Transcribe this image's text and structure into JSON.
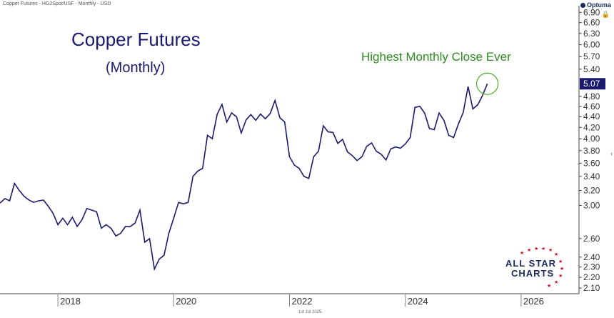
{
  "header": {
    "info": "Copper Futures - HG2Spot/USF - Monthly - USD",
    "logo": "Optuma"
  },
  "footer": {
    "date_label": "1st Jul 2025"
  },
  "annotations": {
    "title": "Copper Futures",
    "subtitle": "(Monthly)",
    "highlight": "Highest Monthly Close Ever"
  },
  "branding": {
    "line1": "ALL STAR",
    "line2": "CHARTS"
  },
  "colors": {
    "line": "#1a1a6e",
    "highlight": "#2e8b1f",
    "last_price_box": "#1a1a6e"
  },
  "chart_data": {
    "type": "line",
    "title": "Copper Futures",
    "subtitle": "(Monthly)",
    "yscale": "log",
    "ylim": [
      2.05,
      7.1
    ],
    "xlim": [
      "2017-01",
      "2026-12"
    ],
    "y_ticks": [
      "6.90",
      "6.60",
      "6.30",
      "6.00",
      "5.70",
      "5.40",
      "4.80",
      "4.60",
      "4.40",
      "4.20",
      "4.00",
      "3.80",
      "3.60",
      "3.40",
      "3.20",
      "3.00",
      "2.60",
      "2.40",
      "2.30",
      "2.20",
      "2.10"
    ],
    "y_tick_values": [
      6.9,
      6.6,
      6.3,
      6.0,
      5.7,
      5.4,
      4.8,
      4.6,
      4.4,
      4.2,
      4.0,
      3.8,
      3.6,
      3.4,
      3.2,
      3.0,
      2.6,
      2.4,
      2.3,
      2.2,
      2.1
    ],
    "x_ticks": [
      "2018",
      "2020",
      "2022",
      "2024",
      "2026"
    ],
    "last_price": "5.07",
    "series": [
      {
        "x": [
          "2017-01",
          "2017-02",
          "2017-03",
          "2017-04",
          "2017-05",
          "2017-06",
          "2017-07",
          "2017-08",
          "2017-09",
          "2017-10",
          "2017-11",
          "2017-12",
          "2018-01",
          "2018-02",
          "2018-03",
          "2018-04",
          "2018-05",
          "2018-06",
          "2018-07",
          "2018-08",
          "2018-09",
          "2018-10",
          "2018-11",
          "2018-12",
          "2019-01",
          "2019-02",
          "2019-03",
          "2019-04",
          "2019-05",
          "2019-06",
          "2019-07",
          "2019-08",
          "2019-09",
          "2019-10",
          "2019-11",
          "2019-12",
          "2020-01",
          "2020-02",
          "2020-03",
          "2020-04",
          "2020-05",
          "2020-06",
          "2020-07",
          "2020-08",
          "2020-09",
          "2020-10",
          "2020-11",
          "2020-12",
          "2021-01",
          "2021-02",
          "2021-03",
          "2021-04",
          "2021-05",
          "2021-06",
          "2021-07",
          "2021-08",
          "2021-09",
          "2021-10",
          "2021-11",
          "2021-12",
          "2022-01",
          "2022-02",
          "2022-03",
          "2022-04",
          "2022-05",
          "2022-06",
          "2022-07",
          "2022-08",
          "2022-09",
          "2022-10",
          "2022-11",
          "2022-12",
          "2023-01",
          "2023-02",
          "2023-03",
          "2023-04",
          "2023-05",
          "2023-06",
          "2023-07",
          "2023-08",
          "2023-09",
          "2023-10",
          "2023-11",
          "2023-12",
          "2024-01",
          "2024-02",
          "2024-03",
          "2024-04",
          "2024-05",
          "2024-06",
          "2024-07",
          "2024-08",
          "2024-09",
          "2024-10",
          "2024-11",
          "2024-12",
          "2025-01",
          "2025-02",
          "2025-03",
          "2025-04",
          "2025-05",
          "2025-06"
        ],
        "y": [
          3.03,
          3.09,
          3.06,
          3.3,
          3.2,
          3.12,
          3.07,
          3.04,
          3.06,
          3.07,
          2.99,
          2.9,
          2.76,
          2.84,
          2.76,
          2.85,
          2.74,
          2.82,
          2.96,
          2.94,
          2.92,
          2.72,
          2.76,
          2.72,
          2.63,
          2.66,
          2.74,
          2.74,
          2.78,
          2.94,
          2.56,
          2.6,
          2.28,
          2.38,
          2.42,
          2.66,
          2.84,
          3.04,
          3.02,
          3.04,
          3.4,
          3.48,
          3.52,
          4.06,
          4.0,
          4.44,
          4.64,
          4.3,
          4.47,
          4.4,
          4.1,
          4.34,
          4.44,
          4.33,
          4.45,
          4.36,
          4.46,
          4.72,
          4.38,
          4.3,
          3.7,
          3.57,
          3.52,
          3.4,
          3.37,
          3.7,
          3.79,
          4.23,
          4.12,
          4.11,
          3.92,
          3.99,
          3.78,
          3.72,
          3.64,
          3.7,
          3.87,
          3.93,
          3.79,
          3.74,
          3.65,
          3.83,
          3.86,
          3.84,
          3.91,
          4.02,
          4.58,
          4.6,
          4.47,
          4.18,
          4.16,
          4.47,
          4.33,
          4.06,
          4.02,
          4.26,
          4.48,
          5.01,
          4.55,
          4.63,
          4.82,
          5.07
        ]
      }
    ]
  }
}
